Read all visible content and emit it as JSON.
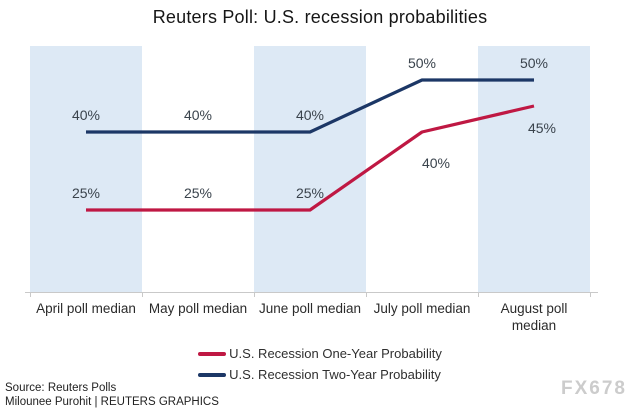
{
  "chart_data": {
    "type": "line",
    "title": "Reuters Poll: U.S. recession probabilities",
    "categories": [
      "April poll median",
      "May poll median",
      "June poll median",
      "July poll median",
      "August poll median"
    ],
    "series": [
      {
        "name": "U.S. Recession One-Year Probability",
        "color": "#bf1843",
        "values": [
          25,
          25,
          25,
          40,
          45
        ],
        "point_labels": [
          "25%",
          "25%",
          "25%",
          "40%",
          "45%"
        ],
        "label_offsets": [
          [
            0,
            -12
          ],
          [
            0,
            -12
          ],
          [
            0,
            -12
          ],
          [
            14,
            36
          ],
          [
            8,
            27
          ]
        ]
      },
      {
        "name": "U.S. Recession Two-Year Probability",
        "color": "#1c3766",
        "values": [
          40,
          40,
          40,
          50,
          50
        ],
        "point_labels": [
          "40%",
          "40%",
          "40%",
          "50%",
          "50%"
        ],
        "label_offsets": [
          [
            0,
            -12
          ],
          [
            0,
            -12
          ],
          [
            0,
            -12
          ],
          [
            0,
            -12
          ],
          [
            0,
            -12
          ]
        ]
      }
    ],
    "grid": false,
    "legend_position": "bottom-center",
    "shaded_columns": [
      0,
      2,
      4
    ],
    "band_color": "#dde9f5",
    "axis_color": "#c9c9c9",
    "label_color": "#3a434c"
  },
  "footer": {
    "source_line1": "Source: Reuters Polls",
    "source_line2": "Milounee Purohit | REUTERS GRAPHICS",
    "watermark": "FX678"
  }
}
